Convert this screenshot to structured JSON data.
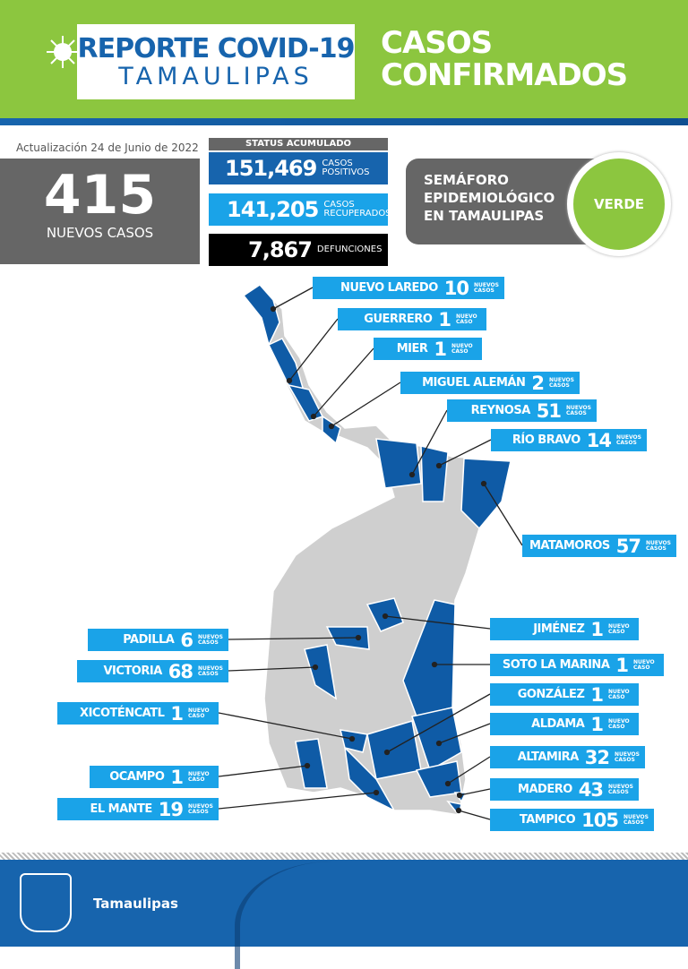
{
  "header": {
    "title_line1": "REPORTE COVID-19",
    "title_line2": "TAMAULIPAS",
    "section_line1": "CASOS",
    "section_line2": "CONFIRMADOS",
    "accent": "#8cc63f",
    "brand_blue": "#1764ad"
  },
  "update": "Actualización  24 de Junio de 2022",
  "new_cases": {
    "value": "415",
    "label": "NUEVOS CASOS"
  },
  "status": {
    "heading": "STATUS ACUMULADO",
    "items": [
      {
        "value": "151,469",
        "label1": "CASOS",
        "label2": "POSITIVOS",
        "color": "#1764ad"
      },
      {
        "value": "141,205",
        "label1": "CASOS",
        "label2": "RECUPERADOS",
        "color": "#1aa3e8"
      },
      {
        "value": "7,867",
        "label1": "DEFUNCIONES",
        "label2": "",
        "color": "#000000"
      }
    ]
  },
  "semaforo": {
    "line1": "SEMÁFORO",
    "line2": "EPIDEMIOLÓGICO",
    "line3": "EN TAMAULIPAS",
    "level": "VERDE",
    "level_color": "#8cc63f"
  },
  "municipalities": [
    {
      "name": "NUEVO LAREDO",
      "cases": "10",
      "suffix1": "NUEVOS",
      "suffix2": "CASOS"
    },
    {
      "name": "GUERRERO",
      "cases": "1",
      "suffix1": "NUEVO",
      "suffix2": "CASO"
    },
    {
      "name": "MIER",
      "cases": "1",
      "suffix1": "NUEVO",
      "suffix2": "CASO"
    },
    {
      "name": "MIGUEL ALEMÁN",
      "cases": "2",
      "suffix1": "NUEVOS",
      "suffix2": "CASOS"
    },
    {
      "name": "REYNOSA",
      "cases": "51",
      "suffix1": "NUEVOS",
      "suffix2": "CASOS"
    },
    {
      "name": "RÍO BRAVO",
      "cases": "14",
      "suffix1": "NUEVOS",
      "suffix2": "CASOS"
    },
    {
      "name": "MATAMOROS",
      "cases": "57",
      "suffix1": "NUEVOS",
      "suffix2": "CASOS"
    },
    {
      "name": "JIMÉNEZ",
      "cases": "1",
      "suffix1": "NUEVO",
      "suffix2": "CASO"
    },
    {
      "name": "SOTO LA MARINA",
      "cases": "1",
      "suffix1": "NUEVO",
      "suffix2": "CASO"
    },
    {
      "name": "GONZÁLEZ",
      "cases": "1",
      "suffix1": "NUEVO",
      "suffix2": "CASO"
    },
    {
      "name": "ALDAMA",
      "cases": "1",
      "suffix1": "NUEVO",
      "suffix2": "CASO"
    },
    {
      "name": "ALTAMIRA",
      "cases": "32",
      "suffix1": "NUEVOS",
      "suffix2": "CASOS"
    },
    {
      "name": "MADERO",
      "cases": "43",
      "suffix1": "NUEVOS",
      "suffix2": "CASOS"
    },
    {
      "name": "TAMPICO",
      "cases": "105",
      "suffix1": "NUEVOS",
      "suffix2": "CASOS"
    },
    {
      "name": "PADILLA",
      "cases": "6",
      "suffix1": "NUEVOS",
      "suffix2": "CASOS"
    },
    {
      "name": "VICTORIA",
      "cases": "68",
      "suffix1": "NUEVOS",
      "suffix2": "CASOS"
    },
    {
      "name": "XICOTÉNCATL",
      "cases": "1",
      "suffix1": "NUEVO",
      "suffix2": "CASO"
    },
    {
      "name": "OCAMPO",
      "cases": "1",
      "suffix1": "NUEVO",
      "suffix2": "CASO"
    },
    {
      "name": "EL MANTE",
      "cases": "19",
      "suffix1": "NUEVOS",
      "suffix2": "CASOS"
    }
  ],
  "map_colors": {
    "with_cases": "#0f5ba6",
    "no_cases": "#cfcfcf"
  },
  "footer": {
    "text": "Tamaulipas"
  }
}
